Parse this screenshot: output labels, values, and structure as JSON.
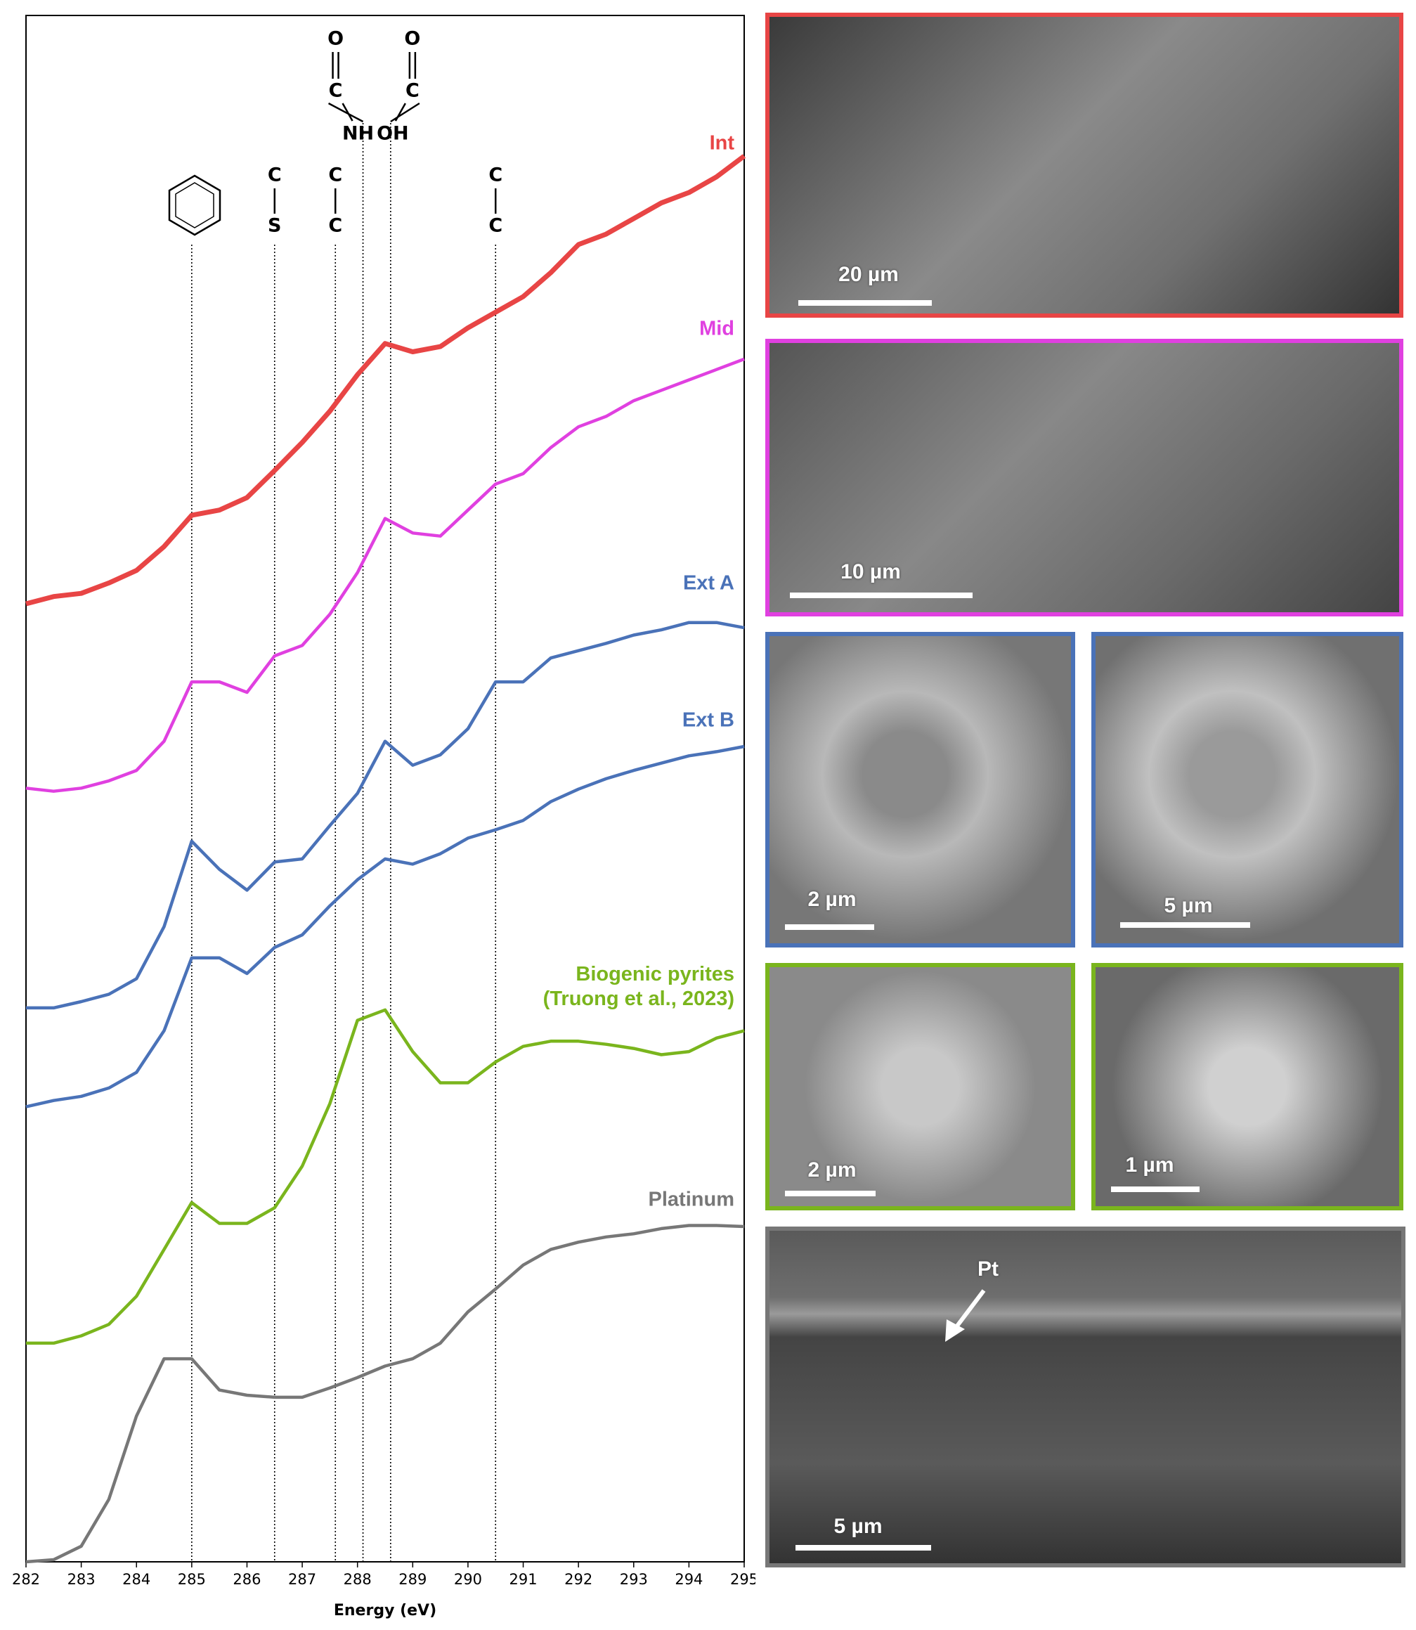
{
  "chart_data": {
    "type": "line",
    "xlabel": "Energy (eV)",
    "xlim": [
      282,
      295
    ],
    "xticks": [
      282,
      283,
      284,
      285,
      286,
      287,
      288,
      289,
      290,
      291,
      292,
      293,
      294,
      295
    ],
    "ylim": [
      0,
      1485
    ],
    "x": [
      282,
      282.5,
      283,
      283.5,
      284,
      284.5,
      285,
      285.5,
      286,
      286.5,
      287,
      287.5,
      288,
      288.5,
      289,
      289.5,
      290,
      290.5,
      291,
      291.5,
      292,
      292.5,
      293,
      293.5,
      294,
      294.5,
      295
    ],
    "series": [
      {
        "name": "Int",
        "color": "#e84545",
        "values": [
          920,
          927,
          930,
          940,
          952,
          975,
          1005,
          1010,
          1022,
          1048,
          1075,
          1105,
          1140,
          1170,
          1162,
          1167,
          1185,
          1200,
          1215,
          1238,
          1265,
          1275,
          1290,
          1305,
          1315,
          1330,
          1350
        ]
      },
      {
        "name": "Mid",
        "color": "#e040e0",
        "values": [
          743,
          740,
          743,
          750,
          760,
          788,
          845,
          845,
          835,
          870,
          880,
          910,
          950,
          1002,
          988,
          985,
          1010,
          1035,
          1045,
          1070,
          1090,
          1100,
          1115,
          1125,
          1135,
          1145,
          1155
        ]
      },
      {
        "name": "Ext A",
        "color": "#4a72b8",
        "values": [
          532,
          532,
          538,
          545,
          560,
          610,
          692,
          665,
          645,
          672,
          675,
          707,
          738,
          788,
          765,
          775,
          800,
          845,
          845,
          868,
          875,
          882,
          890,
          895,
          902,
          902,
          897
        ]
      },
      {
        "name": "Ext B",
        "color": "#4a72b8",
        "values": [
          437,
          443,
          447,
          455,
          470,
          510,
          580,
          580,
          565,
          590,
          602,
          630,
          655,
          675,
          670,
          680,
          695,
          703,
          712,
          730,
          742,
          752,
          760,
          767,
          774,
          778,
          783
        ]
      },
      {
        "name": "Biogenic pyrites (Truong et al., 2023)",
        "color": "#7ab51d",
        "values": [
          210,
          210,
          217,
          228,
          255,
          300,
          345,
          325,
          325,
          340,
          380,
          440,
          520,
          530,
          490,
          460,
          460,
          480,
          495,
          500,
          500,
          497,
          493,
          487,
          490,
          503,
          510
        ]
      },
      {
        "name": "Platinum",
        "color": "#777777",
        "values": [
          0,
          2,
          15,
          60,
          140,
          195,
          195,
          165,
          160,
          158,
          158,
          167,
          177,
          188,
          195,
          210,
          240,
          262,
          285,
          300,
          307,
          312,
          315,
          320,
          323,
          323,
          322
        ]
      }
    ],
    "markers": [
      {
        "x": 285
      },
      {
        "x": 286.5,
        "label": [
          "C",
          "S"
        ]
      },
      {
        "x": 287.6,
        "label": [
          "C",
          "C"
        ]
      },
      {
        "x": 288.1,
        "label": [
          "O",
          "C",
          "NH"
        ]
      },
      {
        "x": 288.6,
        "label": [
          "O",
          "C",
          "OH"
        ]
      },
      {
        "x": 290.5,
        "label": [
          "C",
          "C"
        ]
      }
    ]
  },
  "panels": [
    {
      "color": "#e84545",
      "scale_label": "20 µm"
    },
    {
      "color": "#e040e0",
      "scale_label": "10 µm"
    },
    {
      "color": "#4a72b8",
      "scale_label": "2 µm"
    },
    {
      "color": "#4a72b8",
      "scale_label": "5 µm"
    },
    {
      "color": "#7ab51d",
      "scale_label": "2 µm"
    },
    {
      "color": "#7ab51d",
      "scale_label": "1 µm"
    },
    {
      "color": "#777777",
      "scale_label": "5 µm",
      "annotation": "Pt"
    }
  ]
}
